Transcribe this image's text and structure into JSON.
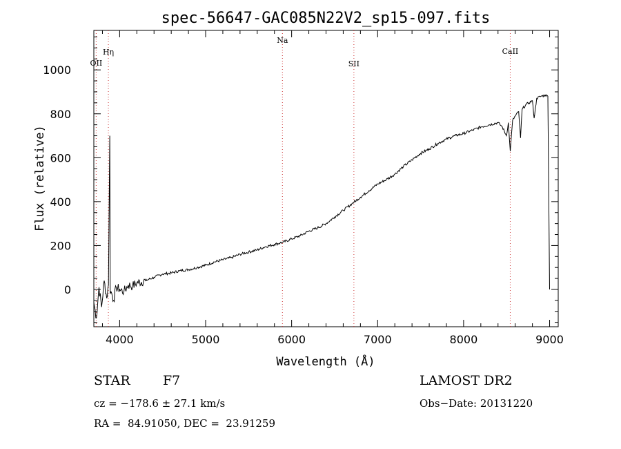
{
  "chart_data": {
    "type": "line",
    "title": "spec-56647-GAC085N22V2_sp15-097.fits",
    "xlabel": "Wavelength (Å)",
    "ylabel": "Flux (relative)",
    "xlim": [
      3700,
      9100
    ],
    "ylim": [
      -170,
      1180
    ],
    "x_ticks": [
      4000,
      5000,
      6000,
      7000,
      8000,
      9000
    ],
    "y_ticks": [
      0,
      200,
      400,
      600,
      800,
      1000
    ],
    "grid": false,
    "line_color": "#000000",
    "marker_color": "#cc3333",
    "series": [
      {
        "x": [
          3700,
          3730,
          3760,
          3790,
          3820,
          3850,
          3870,
          3885,
          3890,
          3900,
          3930,
          3960,
          4000,
          4050,
          4100,
          4150,
          4200,
          4300,
          4400,
          4500,
          4600,
          4700,
          4800,
          4900,
          5000,
          5100,
          5200,
          5300,
          5400,
          5500,
          5600,
          5700,
          5800,
          5900,
          6000,
          6100,
          6200,
          6300,
          6400,
          6500,
          6600,
          6700,
          6800,
          6900,
          7000,
          7100,
          7200,
          7300,
          7400,
          7500,
          7600,
          7700,
          7800,
          7900,
          8000,
          8100,
          8200,
          8300,
          8400,
          8450,
          8498,
          8520,
          8542,
          8570,
          8600,
          8640,
          8662,
          8680,
          8720,
          8760,
          8800,
          8820,
          8850,
          8900,
          8950,
          8980,
          8990,
          9000
        ],
        "y": [
          -60,
          -130,
          10,
          -80,
          40,
          -40,
          20,
          700,
          -20,
          -10,
          -50,
          10,
          0,
          -10,
          20,
          15,
          30,
          40,
          55,
          70,
          75,
          85,
          90,
          100,
          110,
          125,
          135,
          145,
          160,
          170,
          180,
          195,
          205,
          215,
          230,
          245,
          265,
          280,
          300,
          330,
          360,
          390,
          420,
          450,
          480,
          500,
          525,
          560,
          590,
          620,
          640,
          665,
          685,
          700,
          710,
          725,
          740,
          750,
          760,
          740,
          700,
          760,
          630,
          770,
          790,
          810,
          690,
          820,
          840,
          850,
          860,
          780,
          870,
          880,
          885,
          880,
          430,
          0
        ]
      }
    ],
    "lines": [
      {
        "x": 3727,
        "label": "OII"
      },
      {
        "x": 3869,
        "label": "Hη"
      },
      {
        "x": 5893,
        "label": "Na"
      },
      {
        "x": 6724,
        "label": "SII"
      },
      {
        "x": 8542,
        "label": "CaII"
      }
    ]
  },
  "info": {
    "object_class": "STAR",
    "subclass": "F7",
    "survey": "LAMOST DR2",
    "cz": "cz = −178.6 ± 27.1 km/s",
    "obs_date": "Obs−Date: 20131220",
    "radec": "RA =  84.91050, DEC =  23.91259"
  }
}
